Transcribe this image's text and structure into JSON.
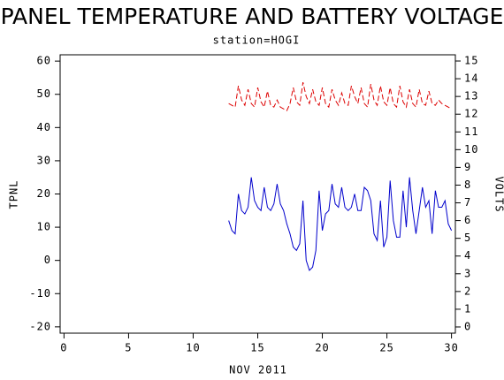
{
  "chart_data": {
    "type": "line",
    "title": "PANEL TEMPERATURE AND BATTERY VOLTAGE",
    "subtitle": "station=HOGI",
    "xlabel": "NOV 2011",
    "ylabel": "TPNL",
    "y2label": "VOLTS",
    "xlim": [
      -0.3,
      30.3
    ],
    "xticks": [
      0,
      5,
      10,
      15,
      20,
      25,
      30
    ],
    "ylim": [
      -21.9,
      61.9
    ],
    "yticks": [
      -20,
      -10,
      0,
      10,
      20,
      30,
      40,
      50,
      60
    ],
    "y2lim": [
      -0.35,
      15.35
    ],
    "y2ticks": [
      0,
      1,
      2,
      3,
      4,
      5,
      6,
      7,
      8,
      9,
      10,
      11,
      12,
      13,
      14,
      15
    ],
    "x": [
      12.75,
      13,
      13.25,
      13.5,
      13.75,
      14,
      14.25,
      14.5,
      14.75,
      15,
      15.25,
      15.5,
      15.75,
      16,
      16.25,
      16.5,
      16.75,
      17,
      17.25,
      17.5,
      17.75,
      18,
      18.25,
      18.5,
      18.75,
      19,
      19.25,
      19.5,
      19.75,
      20,
      20.25,
      20.5,
      20.75,
      21,
      21.25,
      21.5,
      21.75,
      22,
      22.25,
      22.5,
      22.75,
      23,
      23.25,
      23.5,
      23.75,
      24,
      24.25,
      24.5,
      24.75,
      25,
      25.25,
      25.5,
      25.75,
      26,
      26.25,
      26.5,
      26.75,
      27,
      27.25,
      27.5,
      27.75,
      28,
      28.25,
      28.5,
      28.75,
      29,
      29.25,
      29.5,
      29.75,
      30
    ],
    "series": [
      {
        "color": "#0000cc",
        "axis": "y",
        "linestyle": "solid",
        "values": [
          12,
          9,
          8,
          20,
          15,
          14,
          16,
          25,
          18,
          16,
          15,
          22,
          16,
          15,
          17,
          23,
          17,
          15,
          11,
          8,
          4,
          3,
          5,
          18,
          0,
          -3,
          -2,
          3,
          21,
          9,
          14,
          15,
          23,
          17,
          16,
          22,
          16,
          15,
          16,
          20,
          15,
          15,
          22,
          21,
          18,
          8,
          6,
          18,
          4,
          7,
          24,
          12,
          7,
          7,
          21,
          10,
          25,
          15,
          8,
          15,
          22,
          16,
          18,
          8,
          21,
          16,
          16,
          18,
          11,
          9
        ]
      },
      {
        "color": "#dd0000",
        "axis": "y2",
        "linestyle": "dashed",
        "values": [
          12.6,
          12.5,
          12.4,
          13.6,
          12.8,
          12.5,
          13.4,
          12.6,
          12.4,
          13.5,
          12.7,
          12.4,
          13.3,
          12.5,
          12.4,
          12.8,
          12.4,
          12.3,
          12.2,
          12.6,
          13.5,
          12.7,
          12.5,
          13.8,
          13.0,
          12.6,
          13.4,
          12.7,
          12.5,
          13.5,
          12.6,
          12.4,
          13.4,
          12.8,
          12.5,
          13.2,
          12.6,
          12.5,
          13.6,
          13.0,
          12.6,
          13.5,
          12.6,
          12.4,
          13.7,
          12.8,
          12.5,
          13.6,
          12.7,
          12.5,
          13.5,
          12.6,
          12.4,
          13.6,
          12.7,
          12.4,
          13.4,
          12.6,
          12.4,
          13.4,
          12.6,
          12.5,
          13.3,
          12.6,
          12.5,
          12.8,
          12.6,
          12.5,
          12.4,
          12.3
        ]
      }
    ]
  }
}
